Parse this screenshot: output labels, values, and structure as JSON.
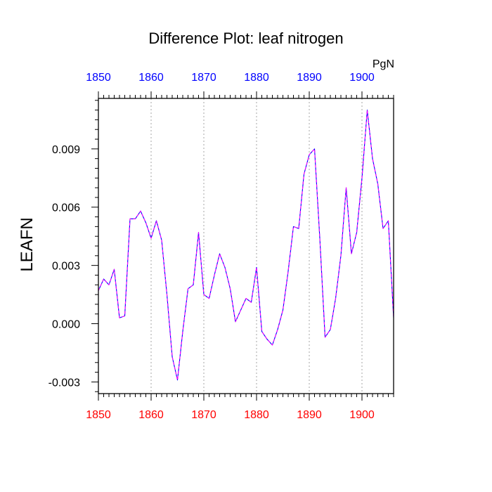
{
  "chart_data": {
    "type": "line",
    "title": "Difference Plot: leaf nitrogen",
    "units_label": "PgN",
    "xlabel": "",
    "ylabel": "LEAFN",
    "xlim": [
      1850,
      1906
    ],
    "ylim": [
      -0.0036,
      0.0116
    ],
    "x_ticks": [
      1850,
      1860,
      1870,
      1880,
      1890,
      1900
    ],
    "x_tick_labels": [
      "1850",
      "1860",
      "1870",
      "1880",
      "1890",
      "1900"
    ],
    "y_ticks": [
      -0.003,
      0.0,
      0.003,
      0.006,
      0.009
    ],
    "y_tick_labels": [
      "-0.003",
      "0.000",
      "0.003",
      "0.006",
      "0.009"
    ],
    "grid": "vertical dotted at x ticks",
    "colors": {
      "bottom_axis_labels": "#ff0000",
      "top_axis_labels": "#0000ff",
      "line_outer": "#0000ff",
      "line_inner": "#ff00ff",
      "grid": "#b4b4b4"
    },
    "series": [
      {
        "x": [
          1850,
          1851,
          1852,
          1853,
          1854,
          1855,
          1856,
          1857,
          1858,
          1859,
          1860,
          1861,
          1862,
          1863,
          1864,
          1865,
          1866,
          1867,
          1868,
          1869,
          1870,
          1871,
          1872,
          1873,
          1874,
          1875,
          1876,
          1877,
          1878,
          1879,
          1880,
          1881,
          1882,
          1883,
          1884,
          1885,
          1886,
          1887,
          1888,
          1889,
          1890,
          1891,
          1892,
          1893,
          1894,
          1895,
          1896,
          1897,
          1898,
          1899,
          1900,
          1901,
          1902,
          1903,
          1904,
          1905,
          1906
        ],
        "values": [
          0.0017,
          0.0023,
          0.002,
          0.0028,
          0.0003,
          0.0004,
          0.0054,
          0.0054,
          0.0058,
          0.0052,
          0.0044,
          0.0053,
          0.0043,
          0.0015,
          -0.0017,
          -0.0029,
          -0.0004,
          0.0018,
          0.002,
          0.0047,
          0.0015,
          0.0013,
          0.0025,
          0.0036,
          0.0029,
          0.0018,
          0.0001,
          0.0007,
          0.0013,
          0.0011,
          0.0029,
          -0.0004,
          -0.0008,
          -0.0011,
          -0.0003,
          0.0007,
          0.0027,
          0.005,
          0.0049,
          0.0077,
          0.0087,
          0.009,
          0.0044,
          -0.0007,
          -0.0003,
          0.0013,
          0.0035,
          0.007,
          0.0036,
          0.0047,
          0.0075,
          0.011,
          0.0085,
          0.0072,
          0.0049,
          0.0053,
          0.0003
        ]
      }
    ]
  }
}
